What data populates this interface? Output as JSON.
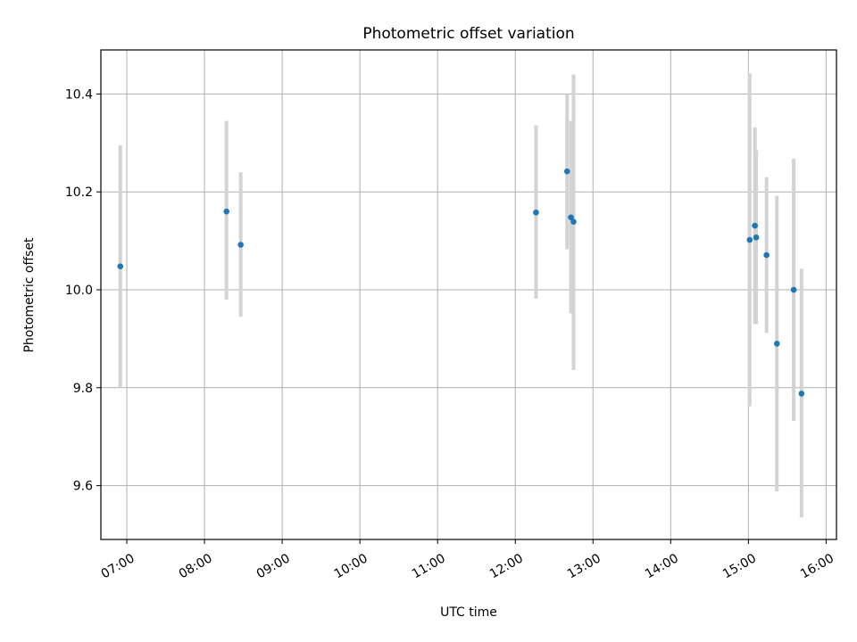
{
  "chart_data": {
    "type": "scatter",
    "title": "Photometric offset variation",
    "xlabel": "UTC time",
    "ylabel": "Photometric offset",
    "x_unit": "hours UTC",
    "xlim": [
      "06:40",
      "16:08"
    ],
    "ylim": [
      9.49,
      10.49
    ],
    "xticks": [
      "07:00",
      "08:00",
      "09:00",
      "10:00",
      "11:00",
      "12:00",
      "13:00",
      "14:00",
      "15:00",
      "16:00"
    ],
    "yticks": [
      "9.6",
      "9.8",
      "10.0",
      "10.2",
      "10.4"
    ],
    "grid": true,
    "marker_color": "#1f77b4",
    "errorbar_color": "#d3d3d3",
    "points": [
      {
        "x": "06:55",
        "y": 10.048,
        "err_low": 9.8,
        "err_high": 10.295
      },
      {
        "x": "08:17",
        "y": 10.16,
        "err_low": 9.98,
        "err_high": 10.345
      },
      {
        "x": "08:28",
        "y": 10.092,
        "err_low": 9.945,
        "err_high": 10.24
      },
      {
        "x": "12:16",
        "y": 10.158,
        "err_low": 9.982,
        "err_high": 10.336
      },
      {
        "x": "12:40",
        "y": 10.242,
        "err_low": 10.083,
        "err_high": 10.4
      },
      {
        "x": "12:43",
        "y": 10.148,
        "err_low": 9.952,
        "err_high": 10.345
      },
      {
        "x": "12:45",
        "y": 10.139,
        "err_low": 9.836,
        "err_high": 10.44
      },
      {
        "x": "15:01",
        "y": 10.102,
        "err_low": 9.762,
        "err_high": 10.442
      },
      {
        "x": "15:05",
        "y": 10.131,
        "err_low": 9.93,
        "err_high": 10.332
      },
      {
        "x": "15:06",
        "y": 10.107,
        "err_low": 9.93,
        "err_high": 10.285
      },
      {
        "x": "15:14",
        "y": 10.071,
        "err_low": 9.912,
        "err_high": 10.23
      },
      {
        "x": "15:22",
        "y": 9.89,
        "err_low": 9.588,
        "err_high": 10.192
      },
      {
        "x": "15:35",
        "y": 10.0,
        "err_low": 9.732,
        "err_high": 10.268
      },
      {
        "x": "15:41",
        "y": 9.788,
        "err_low": 9.535,
        "err_high": 10.043
      }
    ]
  }
}
